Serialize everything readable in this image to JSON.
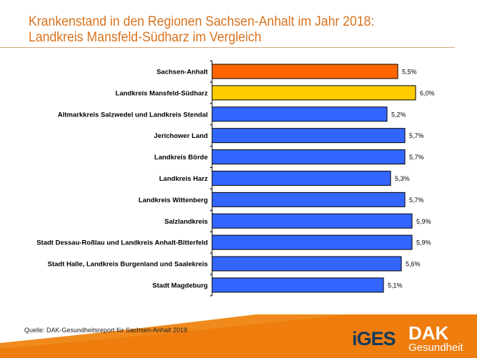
{
  "title_line1": "Krankenstand in den Regionen Sachsen-Anhalt im Jahr 2018:",
  "title_line2": "Landkreis Mansfeld-Südharz im Vergleich",
  "source": "Quelle: DAK-Gesundheitsreport  für Sachsen-Anhalt 2019",
  "logos": {
    "iges": "iGES",
    "dak_top": "DAK",
    "dak_bottom": "Gesundheit"
  },
  "colors": {
    "state": "#ff6600",
    "highlight": "#ffcc00",
    "other": "#3366ff",
    "accent": "#d9731f"
  },
  "chart_data": {
    "type": "bar",
    "orientation": "horizontal",
    "categories": [
      "Sachsen-Anhalt",
      "Landkreis Mansfeld-Südharz",
      "Altmarkkreis Salzwedel und Landkreis Stendal",
      "Jerichower Land",
      "Landkreis Börde",
      "Landkreis Harz",
      "Landkreis Wittenberg",
      "Salzlandkreis",
      "Stadt Dessau-Roßlau und Landkreis Anhalt-Bitterfeld",
      "Stadt Halle, Landkreis Burgenland und Saalekreis",
      "Stadt Magdeburg"
    ],
    "values": [
      5.5,
      6.0,
      5.2,
      5.7,
      5.7,
      5.3,
      5.7,
      5.9,
      5.9,
      5.6,
      5.1
    ],
    "labels": [
      "5,5%",
      "6,0%",
      "5,2%",
      "5,7%",
      "5,7%",
      "5,3%",
      "5,7%",
      "5,9%",
      "5,9%",
      "5,6%",
      "5,1%"
    ],
    "bar_colors": [
      "#ff6600",
      "#ffcc00",
      "#3366ff",
      "#3366ff",
      "#3366ff",
      "#3366ff",
      "#3366ff",
      "#3366ff",
      "#3366ff",
      "#3366ff",
      "#3366ff"
    ],
    "grid": false
  }
}
